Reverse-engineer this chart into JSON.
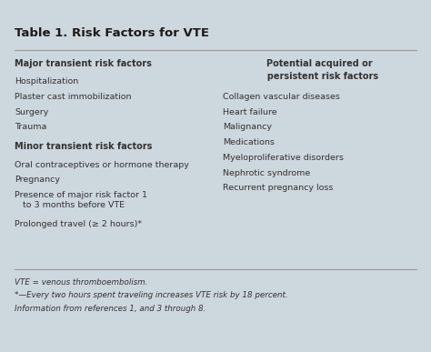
{
  "title": "Table 1. Risk Factors for VTE",
  "bg_color": "#cdd7de",
  "inner_bg": "#d8e2e8",
  "border_color": "#4a8a8c",
  "title_color": "#1a1a1a",
  "text_color": "#333333",
  "line_color": "#999999",
  "left_col_header": "Major transient risk factors",
  "left_col_items1": [
    "Hospitalization",
    "Plaster cast immobilization",
    "Surgery",
    "Trauma"
  ],
  "left_col_header2": "Minor transient risk factors",
  "left_col_items2": [
    "Oral contraceptives or hormone therapy",
    "Pregnancy",
    "Presence of major risk factor 1\n   to 3 months before VTE",
    "Prolonged travel (≥ 2 hours)*"
  ],
  "right_col_header_line1": "Potential acquired or",
  "right_col_header_line2": "  persistent risk factors",
  "right_col_items": [
    "Collagen vascular diseases",
    "Heart failure",
    "Malignancy",
    "Medications",
    "Myeloproliferative disorders",
    "Nephrotic syndrome",
    "Recurrent pregnancy loss"
  ],
  "footnotes": [
    "VTE = venous thromboembolism.",
    "*—Every two hours spent traveling increases VTE risk by 18 percent.",
    "Information from references 1, and 3 through 8."
  ],
  "figsize": [
    4.74,
    3.87
  ],
  "dpi": 100
}
